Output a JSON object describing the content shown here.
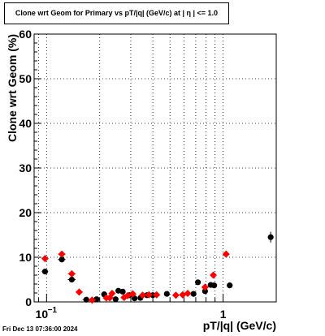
{
  "chart_data": {
    "type": "scatter",
    "title": "Clone wrt Geom for Primary vs pT/|q| (GeV/c) at |  η  | <= 1.0",
    "xlabel": "pT/|q| (GeV/c)",
    "ylabel": "Clone wrt Geom (%)",
    "x_scale": "log",
    "xlim": [
      0.085,
      2.0
    ],
    "ylim": [
      0,
      60
    ],
    "y_ticks": [
      "0",
      "10",
      "20",
      "30",
      "40",
      "50",
      "60"
    ],
    "x_ticks": [
      {
        "value": 0.1,
        "base": "10",
        "exp": "−1"
      },
      {
        "value": 1,
        "base": "1",
        "exp": ""
      }
    ],
    "grid": true,
    "series": [
      {
        "color": "#000000",
        "points": [
          {
            "x": 0.098,
            "y": 6.8,
            "xerr": 0.004
          },
          {
            "x": 0.122,
            "y": 9.5,
            "xerr": 0.006
          },
          {
            "x": 0.139,
            "y": 5.0,
            "xerr": 0.007
          },
          {
            "x": 0.168,
            "y": 0.5,
            "xerr": 0.008
          },
          {
            "x": 0.192,
            "y": 0.6,
            "xerr": 0.008
          },
          {
            "x": 0.212,
            "y": 1.7,
            "xerr": 0.008
          },
          {
            "x": 0.246,
            "y": 0.6,
            "xerr": 0.008
          },
          {
            "x": 0.255,
            "y": 2.5,
            "xerr": 0.009
          },
          {
            "x": 0.27,
            "y": 2.3,
            "xerr": 0.009
          },
          {
            "x": 0.295,
            "y": 1.5,
            "xerr": 0.009
          },
          {
            "x": 0.315,
            "y": 0.8,
            "xerr": 0.01
          },
          {
            "x": 0.34,
            "y": 0.9,
            "xerr": 0.01
          },
          {
            "x": 0.37,
            "y": 1.5,
            "xerr": 0.01
          },
          {
            "x": 0.4,
            "y": 1.5,
            "xerr": 0.012
          },
          {
            "x": 0.48,
            "y": 1.8,
            "xerr": 0.015
          },
          {
            "x": 0.68,
            "y": 1.8,
            "xerr": 0.02
          },
          {
            "x": 0.72,
            "y": 4.4,
            "xerr": 0.022
          },
          {
            "x": 0.79,
            "y": 2.4,
            "xerr": 0.025
          },
          {
            "x": 0.85,
            "y": 3.8,
            "xerr": 0.03
          },
          {
            "x": 0.89,
            "y": 3.7,
            "xerr": 0.03
          },
          {
            "x": 1.09,
            "y": 3.7,
            "xerr": 0.04
          },
          {
            "x": 1.86,
            "y": 14.5,
            "xerr": 0.0,
            "yerr": 1.2
          }
        ]
      },
      {
        "color": "#ff0000",
        "points": [
          {
            "x": 0.098,
            "y": 9.7,
            "xerr": 0.004
          },
          {
            "x": 0.122,
            "y": 10.7,
            "xerr": 0.006
          },
          {
            "x": 0.139,
            "y": 6.3,
            "xerr": 0.007
          },
          {
            "x": 0.153,
            "y": 2.2,
            "xerr": 0.007
          },
          {
            "x": 0.181,
            "y": 0.4,
            "xerr": 0.008
          },
          {
            "x": 0.218,
            "y": 0.9,
            "xerr": 0.008
          },
          {
            "x": 0.228,
            "y": 0.9,
            "xerr": 0.008
          },
          {
            "x": 0.235,
            "y": 1.9,
            "xerr": 0.008
          },
          {
            "x": 0.275,
            "y": 1.0,
            "xerr": 0.009
          },
          {
            "x": 0.288,
            "y": 1.4,
            "xerr": 0.009
          },
          {
            "x": 0.308,
            "y": 1.8,
            "xerr": 0.009
          },
          {
            "x": 0.35,
            "y": 1.5,
            "xerr": 0.01
          },
          {
            "x": 0.38,
            "y": 1.6,
            "xerr": 0.01
          },
          {
            "x": 0.42,
            "y": 1.6,
            "xerr": 0.012
          },
          {
            "x": 0.54,
            "y": 1.5,
            "xerr": 0.015
          },
          {
            "x": 0.59,
            "y": 1.6,
            "xerr": 0.015
          },
          {
            "x": 0.63,
            "y": 1.9,
            "xerr": 0.015
          },
          {
            "x": 0.79,
            "y": 3.3,
            "xerr": 0.025
          },
          {
            "x": 0.88,
            "y": 6.0,
            "xerr": 0.03
          },
          {
            "x": 1.04,
            "y": 10.7,
            "xerr": 0.04
          }
        ]
      }
    ]
  },
  "footer": "Fri Dec 13 07:36:00 2024"
}
